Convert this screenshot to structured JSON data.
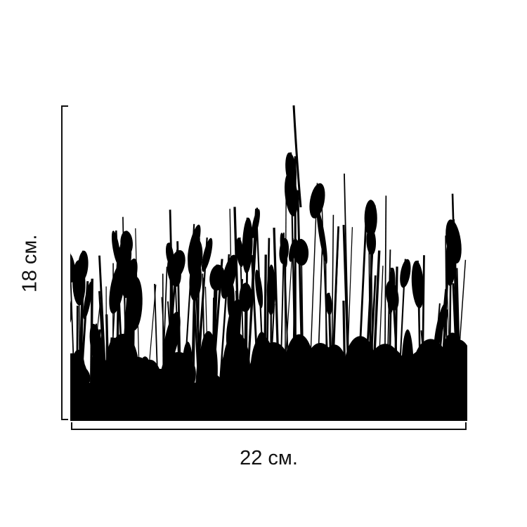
{
  "product": {
    "width_label": "22 см.",
    "height_label": "18 см.",
    "image_subject": "reed-grass-silhouette",
    "colors": {
      "silhouette": "#000000",
      "background": "#ffffff"
    }
  }
}
